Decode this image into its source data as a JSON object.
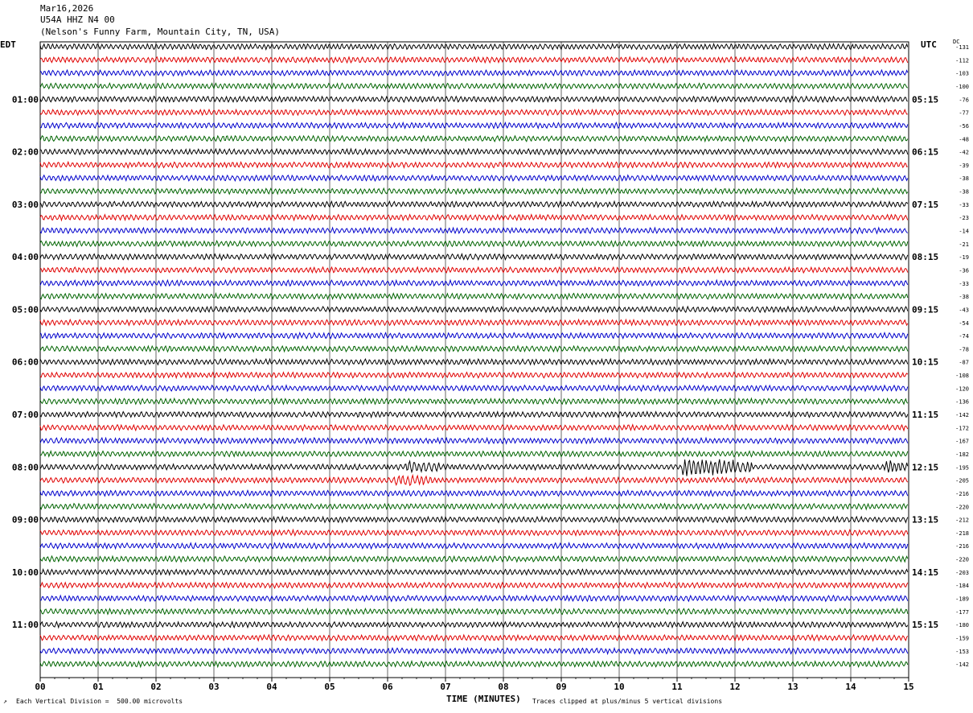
{
  "header": {
    "date": "Mar16,2026",
    "station": "U54A HHZ N4 00",
    "location": "(Nelson's Funny Farm, Mountain City, TN, USA)"
  },
  "axis": {
    "left_tz": "EDT",
    "right_tz": "UTC",
    "dc_label": "DC",
    "xlabel": "TIME (MINUTES)",
    "x_ticks": [
      "00",
      "01",
      "02",
      "03",
      "04",
      "05",
      "06",
      "07",
      "08",
      "09",
      "10",
      "11",
      "12",
      "13",
      "14",
      "15"
    ]
  },
  "footer": {
    "scale_note": "Each Vertical Division =  500.00 microvolts",
    "clip_note": "Traces clipped at plus/minus 5 vertical divisions"
  },
  "chart_data": {
    "type": "line",
    "x_range": [
      0,
      15
    ],
    "x_unit": "minutes",
    "trace_colors": [
      "#000000",
      "#e00000",
      "#0000cc",
      "#006400"
    ],
    "left_hour_labels": [
      "01:00",
      "02:00",
      "03:00",
      "04:00",
      "05:00",
      "06:00",
      "07:00",
      "08:00",
      "09:00",
      "10:00",
      "11:00"
    ],
    "right_hour_labels": [
      "05:15",
      "06:15",
      "07:15",
      "08:15",
      "09:15",
      "10:15",
      "11:15",
      "12:15",
      "13:15",
      "14:15",
      "15:15"
    ],
    "dc_offsets": [
      -131,
      -112,
      -103,
      -100,
      -76,
      -77,
      -56,
      -48,
      -42,
      -39,
      -38,
      -38,
      -33,
      -23,
      -14,
      -21,
      -19,
      -36,
      -33,
      -38,
      -43,
      -54,
      -74,
      -78,
      -87,
      -108,
      -120,
      -136,
      -142,
      -172,
      -167,
      -182,
      -195,
      -205,
      -216,
      -220,
      -212,
      -218,
      -216,
      -220,
      -203,
      -184,
      -189,
      -177,
      -180,
      -159,
      -153,
      -142
    ],
    "events": [
      {
        "trace": 32,
        "start_min": 11.1,
        "end_min": 12.3,
        "amplitude": 2.6
      },
      {
        "trace": 32,
        "start_min": 6.3,
        "end_min": 6.9,
        "amplitude": 1.3
      },
      {
        "trace": 32,
        "start_min": 14.6,
        "end_min": 15.0,
        "amplitude": 1.6
      },
      {
        "trace": 33,
        "start_min": 6.1,
        "end_min": 6.8,
        "amplitude": 1.3
      }
    ]
  }
}
